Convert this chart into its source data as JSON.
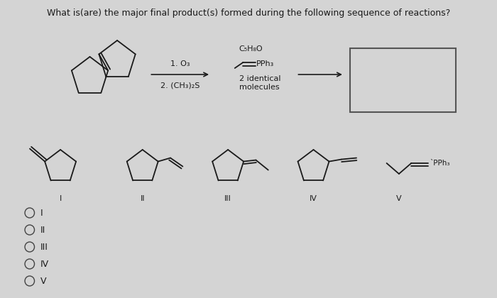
{
  "title": "What is(are) the major final product(s) formed during the following sequence of reactions?",
  "title_fontsize": 9.0,
  "bg_color": "#d4d4d4",
  "text_color": "#1a1a1a",
  "reaction_label1": "1. O₃",
  "reaction_label2": "2. (CH₃)₂S",
  "reagent_label1": "C₅H₈O",
  "reagent_label2": "2 identical",
  "reagent_label3": "molecules",
  "choices": [
    "I",
    "II",
    "III",
    "IV",
    "V"
  ],
  "choice_fontsize": 9,
  "numeral_fontsize": 8,
  "lw": 1.3
}
